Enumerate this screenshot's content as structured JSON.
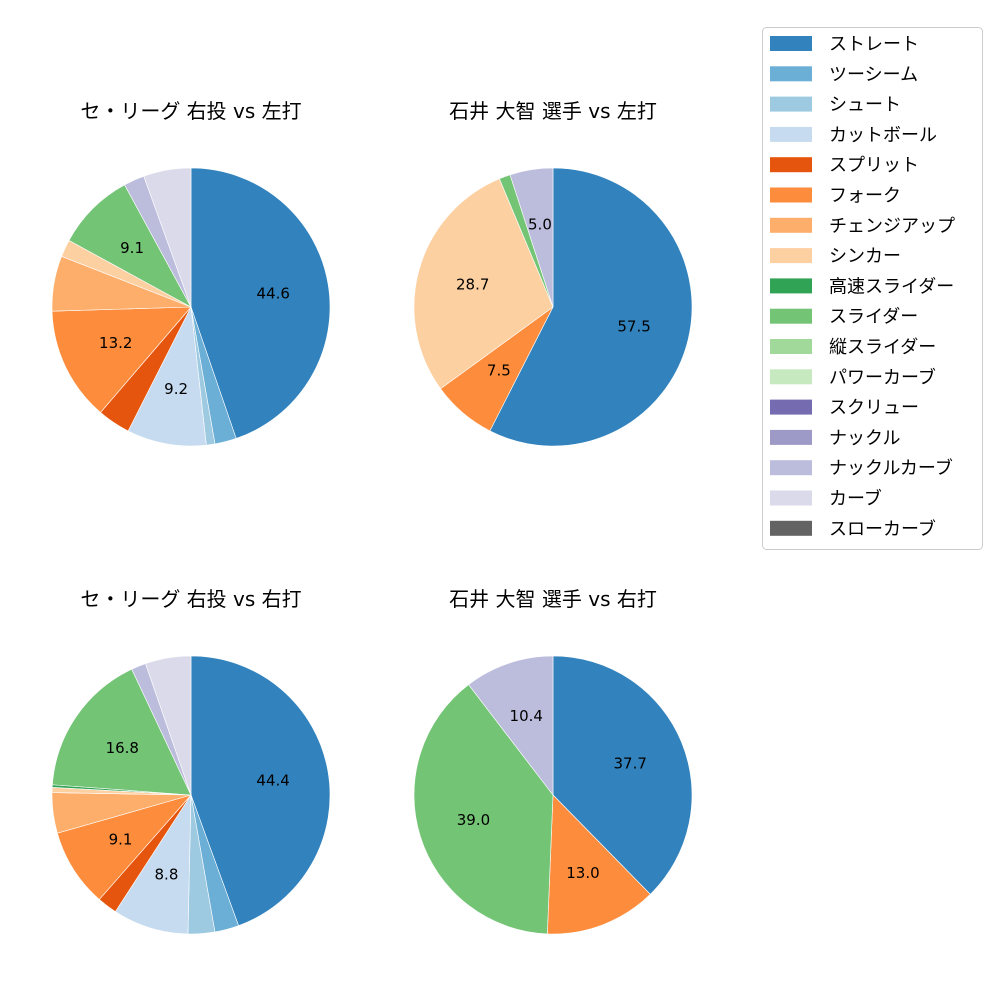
{
  "chart_data": [
    {
      "type": "pie",
      "title": "セ・リーグ 右投 vs 左打",
      "categories": [
        "ストレート",
        "ツーシーム",
        "シュート",
        "カットボール",
        "スプリット",
        "フォーク",
        "チェンジアップ",
        "シンカー",
        "スライダー",
        "ナックルカーブ",
        "カーブ"
      ],
      "values": [
        44.6,
        2.5,
        1.0,
        9.2,
        3.8,
        13.2,
        6.4,
        2.0,
        9.1,
        2.4,
        5.5
      ],
      "labels": [
        "44.6",
        null,
        null,
        "9.2",
        null,
        "13.2",
        null,
        null,
        "9.1",
        null,
        null
      ]
    },
    {
      "type": "pie",
      "title": "石井 大智 選手 vs 左打",
      "categories": [
        "ストレート",
        "フォーク",
        "シンカー",
        "スライダー",
        "ナックルカーブ"
      ],
      "values": [
        57.5,
        7.5,
        28.7,
        1.3,
        5.0
      ],
      "labels": [
        "57.5",
        "7.5",
        "28.7",
        null,
        "5.0"
      ]
    },
    {
      "type": "pie",
      "title": "セ・リーグ 右投 vs 右打",
      "categories": [
        "ストレート",
        "ツーシーム",
        "シュート",
        "カットボール",
        "スプリット",
        "フォーク",
        "チェンジアップ",
        "シンカー",
        "高速スライダー",
        "スライダー",
        "ナックルカーブ",
        "カーブ"
      ],
      "values": [
        44.4,
        2.8,
        3.1,
        8.8,
        2.3,
        9.1,
        4.7,
        0.6,
        0.3,
        16.8,
        1.7,
        5.3
      ],
      "labels": [
        "44.4",
        null,
        null,
        "8.8",
        null,
        "9.1",
        null,
        null,
        null,
        "16.8",
        null,
        null
      ]
    },
    {
      "type": "pie",
      "title": "石井 大智 選手 vs 右打",
      "categories": [
        "ストレート",
        "フォーク",
        "スライダー",
        "ナックルカーブ"
      ],
      "values": [
        37.7,
        13.0,
        39.0,
        10.4
      ],
      "labels": [
        "37.7",
        "13.0",
        "39.0",
        "10.4"
      ]
    }
  ],
  "legend": {
    "placement": "top-right",
    "items": [
      {
        "label": "ストレート",
        "color": "#3182bd"
      },
      {
        "label": "ツーシーム",
        "color": "#6baed6"
      },
      {
        "label": "シュート",
        "color": "#9ecae1"
      },
      {
        "label": "カットボール",
        "color": "#c6dbef"
      },
      {
        "label": "スプリット",
        "color": "#e6550d"
      },
      {
        "label": "フォーク",
        "color": "#fd8d3c"
      },
      {
        "label": "チェンジアップ",
        "color": "#fdae6b"
      },
      {
        "label": "シンカー",
        "color": "#fdd0a2"
      },
      {
        "label": "高速スライダー",
        "color": "#31a354"
      },
      {
        "label": "スライダー",
        "color": "#74c476"
      },
      {
        "label": "縦スライダー",
        "color": "#a1d99b"
      },
      {
        "label": "パワーカーブ",
        "color": "#c7e9c0"
      },
      {
        "label": "スクリュー",
        "color": "#756bb1"
      },
      {
        "label": "ナックル",
        "color": "#9e9ac8"
      },
      {
        "label": "ナックルカーブ",
        "color": "#bcbddc"
      },
      {
        "label": "カーブ",
        "color": "#dadaeb"
      },
      {
        "label": "スローカーブ",
        "color": "#636363"
      }
    ]
  }
}
